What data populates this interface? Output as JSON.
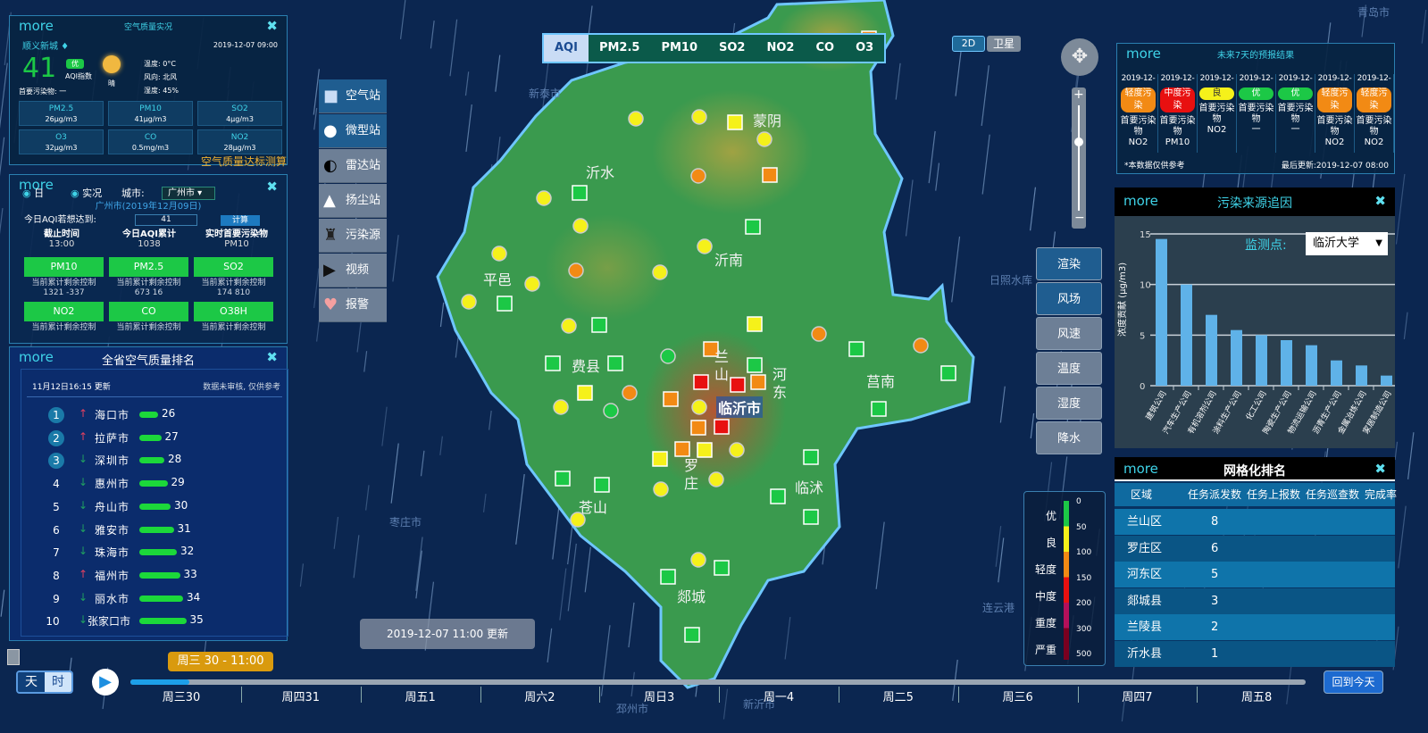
{
  "colors": {
    "good": "#1cc846",
    "moderate": "#f5f11a",
    "light": "#f28a14",
    "medium": "#e81010",
    "heavy": "#b3105a",
    "severe": "#7a0020"
  },
  "map": {
    "tabs": [
      "AQI",
      "PM2.5",
      "PM10",
      "SO2",
      "NO2",
      "CO",
      "O3"
    ],
    "active_tab": "AQI",
    "view_buttons": [
      "2D",
      "卫星"
    ],
    "place_labels": [
      "沂水",
      "蒙阴",
      "沂南",
      "平邑",
      "费县",
      "兰山",
      "河东",
      "莒南",
      "临沂市",
      "罗庄",
      "苍山",
      "临沭",
      "郯城"
    ],
    "bg_labels": [
      "新泰市",
      "枣庄市",
      "邳州市",
      "日照水库",
      "连云港",
      "青岛市",
      "新沂市"
    ],
    "markers": [
      "light",
      "moderate",
      "moderate",
      "moderate",
      "moderate",
      "moderate",
      "moderate",
      "moderate",
      "moderate",
      "moderate",
      "moderate",
      "moderate",
      "moderate",
      "moderate",
      "moderate",
      "moderate",
      "moderate",
      "moderate",
      "moderate",
      "light",
      "light",
      "light",
      "light",
      "light",
      "good",
      "good",
      "moderate",
      "moderate",
      "moderate",
      "moderate",
      "moderate",
      "good",
      "good",
      "good",
      "good",
      "good",
      "good",
      "good",
      "good",
      "good",
      "good",
      "good",
      "good",
      "good",
      "good",
      "good",
      "good",
      "good",
      "good",
      "light",
      "light",
      "light",
      "light",
      "light",
      "light",
      "medium",
      "medium",
      "medium"
    ],
    "update_time": "2019-12-07 11:00",
    "update_suffix": "更新"
  },
  "toolbar": [
    {
      "label": "空气站",
      "icon": "square-icon"
    },
    {
      "label": "微型站",
      "icon": "circle-icon"
    },
    {
      "label": "雷达站",
      "icon": "half-circle-icon"
    },
    {
      "label": "扬尘站",
      "icon": "triangle-icon"
    },
    {
      "label": "污染源",
      "icon": "factory-icon"
    },
    {
      "label": "视频",
      "icon": "video-icon"
    },
    {
      "label": "报警",
      "icon": "alarm-icon"
    }
  ],
  "layers": [
    "渲染",
    "风场",
    "风速",
    "温度",
    "湿度",
    "降水"
  ],
  "legend": {
    "levels": [
      "优",
      "良",
      "轻度",
      "中度",
      "重度",
      "严重"
    ],
    "ticks": [
      "0",
      "50",
      "100",
      "150",
      "200",
      "300",
      "500"
    ]
  },
  "timeline": {
    "modes": [
      "天",
      "时"
    ],
    "tooltip": "周三 30 - 11:00",
    "progress": 0.05,
    "labels": [
      "周三30",
      "周四31",
      "周五1",
      "周六2",
      "周日3",
      "周一4",
      "周二5",
      "周三6",
      "周四7",
      "周五8"
    ],
    "today": "回到今天"
  },
  "panel_overview": {
    "more": "more",
    "title": "空气质量实况",
    "city": "顺义新城 ♦",
    "time": "2019-12-07 09:00",
    "aqi": "41",
    "level": "优",
    "aqi_label": "AQI指数",
    "weather": "晴",
    "primary": "首要污染物: 一",
    "temp": "温度: 0°C",
    "wind": "风向: 北风",
    "humidity": "湿度: 45%",
    "cells": [
      {
        "name": "PM2.5",
        "value": "26μg/m3"
      },
      {
        "name": "PM10",
        "value": "41μg/m3"
      },
      {
        "name": "SO2",
        "value": "4μg/m3"
      },
      {
        "name": "O3",
        "value": "32μg/m3"
      },
      {
        "name": "CO",
        "value": "0.5mg/m3"
      },
      {
        "name": "NO2",
        "value": "28μg/m3"
      }
    ],
    "footer": "空气质量达标测算"
  },
  "panel_calc": {
    "more": "more",
    "day": "日",
    "live": "实况",
    "city_label": "城市:",
    "city": "广州市",
    "subtitle": "广州市(2019年12月09日)",
    "target_label": "今日AQI若想达到:",
    "target": "41",
    "calc": "计算",
    "stats": [
      {
        "label": "截止时间",
        "value": "13:00"
      },
      {
        "label": "今日AQI累计",
        "value": "1038"
      },
      {
        "label": "实时首要污染物",
        "value": "PM10"
      }
    ],
    "buttons": [
      {
        "name": "PM10",
        "sub": "当前累计剩余控制",
        "vals": "1321 -337"
      },
      {
        "name": "PM2.5",
        "sub": "当前累计剩余控制",
        "vals": "673 16"
      },
      {
        "name": "SO2",
        "sub": "当前累计剩余控制",
        "vals": "174 810"
      },
      {
        "name": "NO2",
        "sub": "当前累计剩余控制",
        "vals": ""
      },
      {
        "name": "CO",
        "sub": "当前累计剩余控制",
        "vals": ""
      },
      {
        "name": "O38H",
        "sub": "当前累计剩余控制",
        "vals": ""
      }
    ]
  },
  "panel_rank": {
    "more": "more",
    "title": "全省空气质量排名",
    "updated": "11月12日16:15 更新",
    "note": "数据未审核, 仅供参考",
    "rows": [
      {
        "rank": "1",
        "trend": "up",
        "city": "海口市",
        "value": "26"
      },
      {
        "rank": "2",
        "trend": "up",
        "city": "拉萨市",
        "value": "27"
      },
      {
        "rank": "3",
        "trend": "down",
        "city": "深圳市",
        "value": "28"
      },
      {
        "rank": "4",
        "trend": "down",
        "city": "惠州市",
        "value": "29"
      },
      {
        "rank": "5",
        "trend": "down",
        "city": "舟山市",
        "value": "30"
      },
      {
        "rank": "6",
        "trend": "down",
        "city": "雅安市",
        "value": "31"
      },
      {
        "rank": "7",
        "trend": "down",
        "city": "珠海市",
        "value": "32"
      },
      {
        "rank": "8",
        "trend": "up",
        "city": "福州市",
        "value": "33"
      },
      {
        "rank": "9",
        "trend": "down",
        "city": "丽水市",
        "value": "34"
      },
      {
        "rank": "10",
        "trend": "down",
        "city": "张家口市",
        "value": "35"
      }
    ]
  },
  "panel_forecast": {
    "more": "more",
    "title": "未来7天的预报结果",
    "days": [
      {
        "date": "2019-12-",
        "level": "轻度污染",
        "color": "#f28a14",
        "pollutant": "NO2"
      },
      {
        "date": "2019-12-",
        "level": "中度污染",
        "color": "#e81010",
        "pollutant": "PM10"
      },
      {
        "date": "2019-12-",
        "level": "良",
        "color": "#f5f11a",
        "pollutant": "NO2"
      },
      {
        "date": "2019-12-",
        "level": "优",
        "color": "#1cc846",
        "pollutant": "一"
      },
      {
        "date": "2019-12-",
        "level": "优",
        "color": "#1cc846",
        "pollutant": "一"
      },
      {
        "date": "2019-12-",
        "level": "轻度污染",
        "color": "#f28a14",
        "pollutant": "NO2"
      },
      {
        "date": "2019-12-",
        "level": "轻度污染",
        "color": "#f28a14",
        "pollutant": "NO2"
      }
    ],
    "pollutant_label": "首要污染物",
    "note": "*本数据仅供参考",
    "updated": "最后更新:2019-12-07 08:00"
  },
  "panel_source": {
    "more": "more",
    "title": "污染来源追因",
    "station_label": "监测点:",
    "station": "临沂大学",
    "chart_data": {
      "type": "bar",
      "ylabel": "浓度贡献 (μg/m3)",
      "ylim": [
        0,
        15
      ],
      "yticks": [
        "0",
        "5",
        "10",
        "15"
      ],
      "grid": true,
      "categories": [
        "建筑公司",
        "汽车生产公司",
        "有机溶剂公司",
        "涂料生产公司",
        "化工公司",
        "陶瓷生产公司",
        "物流运输公司",
        "沥青生产公司",
        "金属冶炼公司",
        "家居制造公司"
      ],
      "values": [
        14.5,
        10,
        7,
        5.5,
        5,
        4.5,
        4,
        2.5,
        2,
        1
      ]
    }
  },
  "panel_grid": {
    "more": "more",
    "title": "网格化排名",
    "headers": [
      "区域",
      "任务派发数",
      "任务上报数",
      "任务巡查数",
      "完成率"
    ],
    "rows": [
      {
        "area": "兰山区",
        "count": "8"
      },
      {
        "area": "罗庄区",
        "count": "6"
      },
      {
        "area": "河东区",
        "count": "5"
      },
      {
        "area": "郯城县",
        "count": "3"
      },
      {
        "area": "兰陵县",
        "count": "2"
      },
      {
        "area": "沂水县",
        "count": "1"
      }
    ]
  }
}
